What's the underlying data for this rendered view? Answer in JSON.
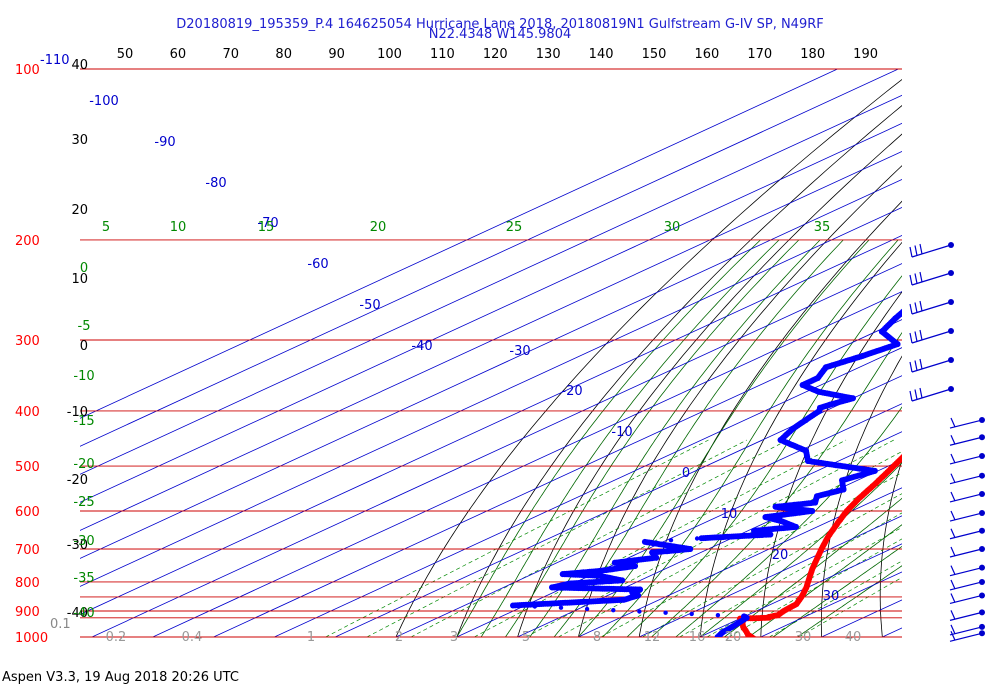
{
  "header": {
    "title_line1": "D20180819_195359_P.4 164625054 Hurricane Lane 2018, 20180819N1 Gulfstream G-IV SP, N49RF",
    "title_line2": "N22.4348 W145.9804"
  },
  "footer": {
    "label": "Aspen V3.3, 19 Aug 2018  20:26 UTC"
  },
  "colors": {
    "temperature": "#ff0000",
    "dewpoint": "#0000ff",
    "isobar": "#cc0000",
    "isotherm": "#0000cc",
    "mixing_ratio": "#008800",
    "adiabat": "#000000",
    "wind": "#0000cc",
    "title": "#2020d0"
  },
  "chart_data": {
    "type": "line",
    "title": "D20180819_195359_P.4 164625054 Hurricane Lane 2018, 20180819N1 Gulfstream G-IV SP, N49RF",
    "subtitle": "N22.4348 W145.9804",
    "xlabel": "",
    "ylabel": "",
    "pressure_ticks": [
      "100",
      "200",
      "300",
      "400",
      "500",
      "600",
      "700",
      "800",
      "900",
      "1000"
    ],
    "top_temperature_ticks_F": [
      "50",
      "60",
      "70",
      "80",
      "90",
      "100",
      "110",
      "120",
      "130",
      "140",
      "150",
      "160",
      "170",
      "180",
      "190"
    ],
    "left_temperature_ticks_C": [
      "40",
      "30",
      "20",
      "10",
      "0",
      "-10",
      "-20",
      "-30",
      "-40"
    ],
    "left_extra_ticks": [
      "-110",
      "0.1"
    ],
    "isotherm_labels": [
      "-100",
      "-90",
      "-80",
      "-70",
      "-60",
      "-50",
      "-40",
      "-30",
      "-20",
      "-10",
      "0",
      "10",
      "20",
      "30"
    ],
    "mixing_ratio_top_labels": [
      "5",
      "10",
      "15",
      "20",
      "25",
      "30",
      "35"
    ],
    "mixing_ratio_left_labels": [
      "0",
      "-5",
      "-10",
      "-15",
      "-20",
      "-25",
      "-30",
      "-35",
      "-40"
    ],
    "mixing_ratio_bottom_labels": [
      "0.2",
      "0.4",
      "1",
      "2",
      "3",
      "5",
      "8",
      "12",
      "16",
      "20",
      "30",
      "40"
    ],
    "series": [
      {
        "name": "",
        "color": "#ff0000",
        "points": [
          [
            1005,
            29.2
          ],
          [
            990,
            27.0
          ],
          [
            975,
            25.3
          ],
          [
            960,
            23.5
          ],
          [
            945,
            22.0
          ],
          [
            935,
            21.2
          ],
          [
            928,
            20.0
          ],
          [
            925,
            24.5
          ],
          [
            922,
            24.2
          ],
          [
            915,
            25.0
          ],
          [
            900,
            24.5
          ],
          [
            875,
            24.1
          ],
          [
            850,
            22.4
          ],
          [
            820,
            20.0
          ],
          [
            790,
            17.2
          ],
          [
            760,
            14.3
          ],
          [
            730,
            11.5
          ],
          [
            700,
            8.6
          ],
          [
            665,
            5.2
          ],
          [
            630,
            2.0
          ],
          [
            600,
            -0.8
          ],
          [
            570,
            -3.3
          ],
          [
            540,
            -5.6
          ],
          [
            510,
            -8.2
          ],
          [
            480,
            -11.0
          ],
          [
            455,
            -13.5
          ],
          [
            430,
            -16.5
          ],
          [
            405,
            -19.2
          ],
          [
            380,
            -22.5
          ],
          [
            355,
            -26.5
          ],
          [
            330,
            -30.5
          ],
          [
            300,
            -35.0
          ],
          [
            280,
            -38.4
          ],
          [
            260,
            -42.2
          ],
          [
            240,
            -46.2
          ],
          [
            220,
            -50.5
          ],
          [
            208,
            -53.5
          ],
          [
            202,
            -54.5
          ],
          [
            195,
            -55.5
          ],
          [
            172,
            -64.0
          ]
        ]
      },
      {
        "name": "",
        "color": "#0000ff",
        "points": [
          [
            1000,
            22.9
          ],
          [
            980,
            22.0
          ],
          [
            960,
            21.7
          ],
          [
            940,
            21.2
          ],
          [
            925,
            20.8
          ],
          [
            920,
            19.9
          ],
          [
            880,
            -22.0
          ],
          [
            860,
            -5.8
          ],
          [
            845,
            -5.0
          ],
          [
            835,
            -7.0
          ],
          [
            825,
            -6.8
          ],
          [
            818,
            -22.0
          ],
          [
            805,
            -20.5
          ],
          [
            795,
            -13.0
          ],
          [
            780,
            -18.5
          ],
          [
            775,
            -25.0
          ],
          [
            765,
            -20.0
          ],
          [
            750,
            -16.0
          ],
          [
            740,
            -20.5
          ],
          [
            725,
            -15.5
          ],
          [
            710,
            -18.0
          ],
          [
            700,
            -13.0
          ],
          [
            690,
            -18.0
          ],
          [
            680,
            -23.0
          ],
          [
            670,
            -15.0
          ],
          [
            660,
            -5.0
          ],
          [
            650,
            -9.0
          ],
          [
            640,
            -3.5
          ],
          [
            625,
            -8.0
          ],
          [
            615,
            -12.0
          ],
          [
            600,
            -6.5
          ],
          [
            590,
            -14.0
          ],
          [
            580,
            -9.0
          ],
          [
            565,
            -11.0
          ],
          [
            550,
            -9.0
          ],
          [
            530,
            -12.5
          ],
          [
            510,
            -10.5
          ],
          [
            490,
            -25.0
          ],
          [
            470,
            -29.0
          ],
          [
            450,
            -37.0
          ],
          [
            430,
            -39.0
          ],
          [
            415,
            -40.0
          ],
          [
            400,
            -41.0
          ],
          [
            395,
            -42.0
          ],
          [
            390,
            -41.5
          ],
          [
            380,
            -40.0
          ],
          [
            370,
            -48.0
          ],
          [
            360,
            -53.0
          ],
          [
            350,
            -53.0
          ],
          [
            335,
            -55.5
          ],
          [
            320,
            -53.5
          ],
          [
            305,
            -52.0
          ],
          [
            290,
            -59.0
          ],
          [
            275,
            -61.5
          ],
          [
            262,
            -63.5
          ],
          [
            250,
            -61.0
          ],
          [
            240,
            -64.0
          ],
          [
            225,
            -64.5
          ],
          [
            210,
            -68.5
          ],
          [
            205,
            -70.5
          ]
        ]
      }
    ],
    "wind_staff_pressures": [
      200,
      230,
      265,
      300,
      340,
      390,
      415,
      445,
      480,
      520,
      560,
      605,
      650,
      700,
      755,
      800,
      845,
      905,
      960,
      985
    ],
    "x_axis": "temperature_C",
    "y_axis": "pressure_hPa",
    "xlim_at_1000hPa": [
      -55,
      45
    ],
    "ylim": [
      1000,
      100
    ],
    "grid": true,
    "legend": "none"
  }
}
